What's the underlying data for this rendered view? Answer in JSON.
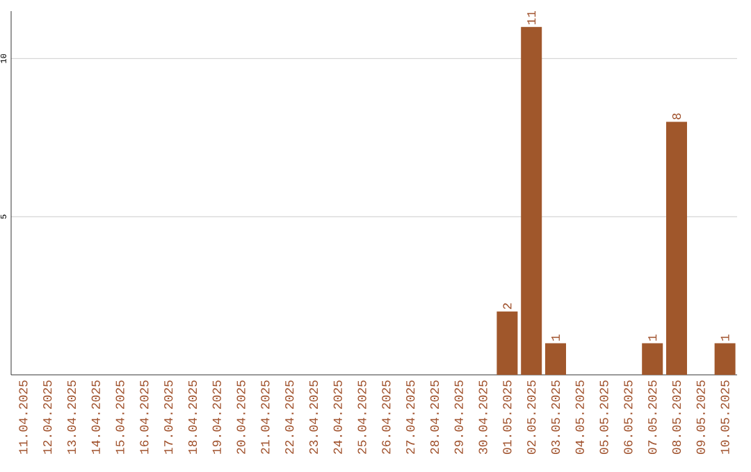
{
  "chart_data": {
    "type": "bar",
    "categories": [
      "11.04.2025",
      "12.04.2025",
      "13.04.2025",
      "14.04.2025",
      "15.04.2025",
      "16.04.2025",
      "17.04.2025",
      "18.04.2025",
      "19.04.2025",
      "20.04.2025",
      "21.04.2025",
      "22.04.2025",
      "23.04.2025",
      "24.04.2025",
      "25.04.2025",
      "26.04.2025",
      "27.04.2025",
      "28.04.2025",
      "29.04.2025",
      "30.04.2025",
      "01.05.2025",
      "02.05.2025",
      "03.05.2025",
      "04.05.2025",
      "05.05.2025",
      "06.05.2025",
      "07.05.2025",
      "08.05.2025",
      "09.05.2025",
      "10.05.2025"
    ],
    "values": [
      0,
      0,
      0,
      0,
      0,
      0,
      0,
      0,
      0,
      0,
      0,
      0,
      0,
      0,
      0,
      0,
      0,
      0,
      0,
      0,
      2,
      11,
      1,
      0,
      0,
      0,
      1,
      8,
      0,
      1
    ],
    "value_labels": [
      null,
      null,
      null,
      null,
      null,
      null,
      null,
      null,
      null,
      null,
      null,
      null,
      null,
      null,
      null,
      null,
      null,
      null,
      null,
      null,
      "2",
      "11",
      "1",
      null,
      null,
      null,
      "1",
      "8",
      null,
      "1"
    ],
    "color": "#a0572b",
    "ylim": [
      0,
      11.5
    ],
    "yticks": [
      5,
      10
    ],
    "grid": "y"
  }
}
